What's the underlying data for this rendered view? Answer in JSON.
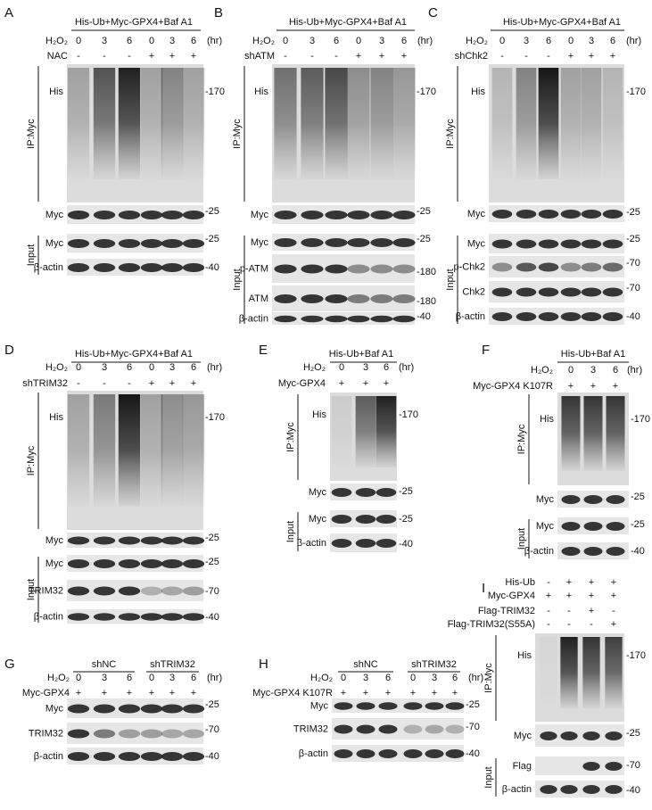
{
  "panels": [
    {
      "letter": "A",
      "header": "His-Ub+Myc-GPX4+Baf A1",
      "conditions": [
        {
          "label": "H₂O₂",
          "values": [
            "0",
            "3",
            "6",
            "0",
            "3",
            "6"
          ],
          "unit": "(hr)"
        },
        {
          "label": "NAC",
          "values": [
            "-",
            "-",
            "-",
            "+",
            "+",
            "+"
          ]
        }
      ],
      "ip": {
        "label": "IP:Myc",
        "blots": [
          {
            "label": "His",
            "marker": "-170"
          },
          {
            "label": "Myc",
            "marker": "-25"
          }
        ]
      },
      "input": {
        "label": "Input",
        "blots": [
          {
            "label": "Myc",
            "marker": "-25"
          },
          {
            "label": "β-actin",
            "marker": "-40"
          }
        ]
      }
    },
    {
      "letter": "B",
      "header": "His-Ub+Myc-GPX4+Baf A1",
      "conditions": [
        {
          "label": "H₂O₂",
          "values": [
            "0",
            "3",
            "6",
            "0",
            "3",
            "6"
          ],
          "unit": "(hr)"
        },
        {
          "label": "shATM",
          "values": [
            "-",
            "-",
            "-",
            "+",
            "+",
            "+"
          ]
        }
      ],
      "ip": {
        "label": "IP:Myc",
        "blots": [
          {
            "label": "His",
            "marker": "-170"
          },
          {
            "label": "Myc",
            "marker": "-25"
          }
        ]
      },
      "input": {
        "label": "Input",
        "blots": [
          {
            "label": "Myc",
            "marker": "-25"
          },
          {
            "label": "p-ATM",
            "marker": "-180"
          },
          {
            "label": "ATM",
            "marker": "-180"
          },
          {
            "label": "β-actin",
            "marker": "-40"
          }
        ]
      }
    },
    {
      "letter": "C",
      "header": "His-Ub+Myc-GPX4+Baf A1",
      "conditions": [
        {
          "label": "H₂O₂",
          "values": [
            "0",
            "3",
            "6",
            "0",
            "3",
            "6"
          ],
          "unit": "(hr)"
        },
        {
          "label": "shChk2",
          "values": [
            "-",
            "-",
            "-",
            "+",
            "+",
            "+"
          ]
        }
      ],
      "ip": {
        "label": "IP:Myc",
        "blots": [
          {
            "label": "His",
            "marker": "-170"
          },
          {
            "label": "Myc",
            "marker": "-25"
          }
        ]
      },
      "input": {
        "label": "Input",
        "blots": [
          {
            "label": "Myc",
            "marker": "-25"
          },
          {
            "label": "p-Chk2",
            "marker": "-70"
          },
          {
            "label": "Chk2",
            "marker": "-70"
          },
          {
            "label": "β-actin",
            "marker": "-40"
          }
        ]
      }
    },
    {
      "letter": "D",
      "header": "His-Ub+Myc-GPX4+Baf A1",
      "conditions": [
        {
          "label": "H₂O₂",
          "values": [
            "0",
            "3",
            "6",
            "0",
            "3",
            "6"
          ],
          "unit": "(hr)"
        },
        {
          "label": "shTRIM32",
          "values": [
            "-",
            "-",
            "-",
            "+",
            "+",
            "+"
          ]
        }
      ],
      "ip": {
        "label": "IP:Myc",
        "blots": [
          {
            "label": "His",
            "marker": "-170"
          },
          {
            "label": "Myc",
            "marker": "-25"
          }
        ]
      },
      "input": {
        "label": "Input",
        "blots": [
          {
            "label": "Myc",
            "marker": "-25"
          },
          {
            "label": "TRIM32",
            "marker": "-70"
          },
          {
            "label": "β-actin",
            "marker": "-40"
          }
        ]
      }
    },
    {
      "letter": "E",
      "header": "His-Ub+Baf A1",
      "conditions": [
        {
          "label": "H₂O₂",
          "values": [
            "0",
            "3",
            "6"
          ],
          "unit": "(hr)"
        },
        {
          "label": "Myc-GPX4",
          "values": [
            "+",
            "+",
            "+"
          ]
        }
      ],
      "ip": {
        "label": "IP:Myc",
        "blots": [
          {
            "label": "His",
            "marker": "-170"
          },
          {
            "label": "Myc",
            "marker": "-25"
          }
        ]
      },
      "input": {
        "label": "Input",
        "blots": [
          {
            "label": "Myc",
            "marker": "-25"
          },
          {
            "label": "β-actin",
            "marker": "-40"
          }
        ]
      }
    },
    {
      "letter": "F",
      "header": "His-Ub+Baf A1",
      "conditions": [
        {
          "label": "H₂O₂",
          "values": [
            "0",
            "3",
            "6"
          ],
          "unit": "(hr)"
        },
        {
          "label": "Myc-GPX4 K107R",
          "values": [
            "+",
            "+",
            "+"
          ]
        }
      ],
      "ip": {
        "label": "IP:Myc",
        "blots": [
          {
            "label": "His",
            "marker": "-170"
          },
          {
            "label": "Myc",
            "marker": "-25"
          }
        ]
      },
      "input": {
        "label": "Input",
        "blots": [
          {
            "label": "Myc",
            "marker": "-25"
          },
          {
            "label": "β-actin",
            "marker": "-40"
          }
        ]
      }
    },
    {
      "letter": "G",
      "groups": [
        "shNC",
        "shTRIM32"
      ],
      "conditions": [
        {
          "label": "H₂O₂",
          "values": [
            "0",
            "3",
            "6",
            "0",
            "3",
            "6"
          ],
          "unit": "(hr)"
        },
        {
          "label": "Myc-GPX4",
          "values": [
            "+",
            "+",
            "+",
            "+",
            "+",
            "+"
          ]
        }
      ],
      "blots": [
        {
          "label": "Myc",
          "marker": "-25"
        },
        {
          "label": "TRIM32",
          "marker": "-70"
        },
        {
          "label": "β-actin",
          "marker": "-40"
        }
      ]
    },
    {
      "letter": "H",
      "groups": [
        "shNC",
        "shTRIM32"
      ],
      "conditions": [
        {
          "label": "H₂O₂",
          "values": [
            "0",
            "3",
            "6",
            "0",
            "3",
            "6"
          ],
          "unit": "(hr)"
        },
        {
          "label": "Myc-GPX4 K107R",
          "values": [
            "+",
            "+",
            "+",
            "+",
            "+",
            "+"
          ]
        }
      ],
      "blots": [
        {
          "label": "Myc",
          "marker": "-25"
        },
        {
          "label": "TRIM32",
          "marker": "-70"
        },
        {
          "label": "β-actin",
          "marker": "-40"
        }
      ]
    },
    {
      "letter": "I",
      "conditions": [
        {
          "label": "His-Ub",
          "values": [
            "-",
            "+",
            "+",
            "+"
          ]
        },
        {
          "label": "Myc-GPX4",
          "values": [
            "+",
            "+",
            "+",
            "+"
          ]
        },
        {
          "label": "Flag-TRIM32",
          "values": [
            "-",
            "-",
            "+",
            "-"
          ]
        },
        {
          "label": "Flag-TRIM32(S55A)",
          "values": [
            "-",
            "-",
            "-",
            "+"
          ]
        }
      ],
      "ip": {
        "label": "IP:Myc",
        "blots": [
          {
            "label": "His",
            "marker": "-170"
          },
          {
            "label": "Myc",
            "marker": "-25"
          }
        ]
      },
      "input": {
        "label": "Input",
        "blots": [
          {
            "label": "Flag",
            "marker": "-70"
          },
          {
            "label": "β-actin",
            "marker": "-40"
          }
        ]
      }
    }
  ]
}
